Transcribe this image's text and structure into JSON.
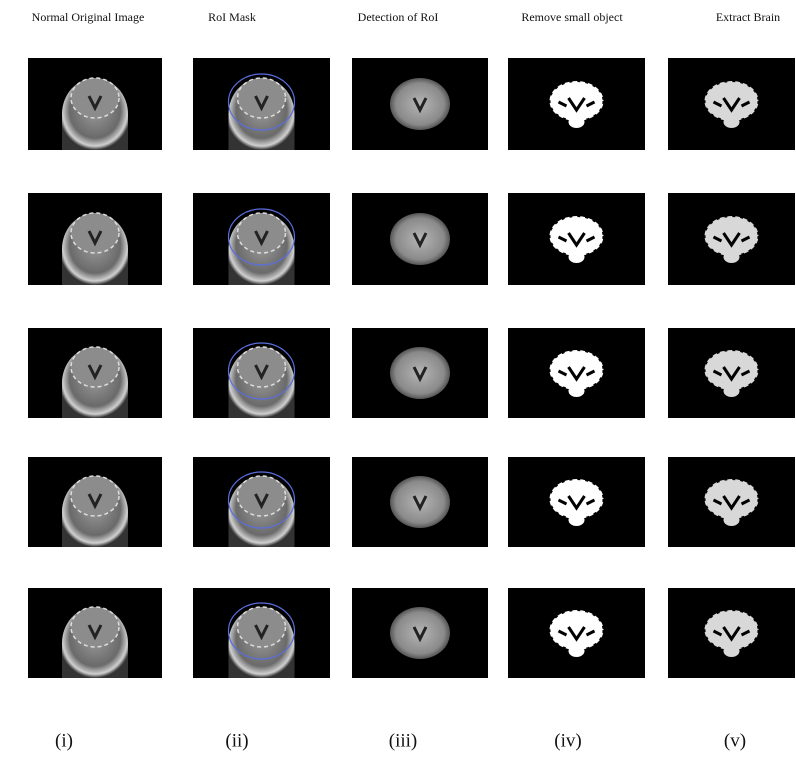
{
  "columns": [
    {
      "title": "Normal Original Image",
      "label": "(i)"
    },
    {
      "title": "RoI Mask",
      "label": "(ii)"
    },
    {
      "title": "Detection of RoI",
      "label": "(iii)"
    },
    {
      "title": "Remove small object",
      "label": "(iv)"
    },
    {
      "title": "Extract Brain",
      "label": "(v)"
    }
  ]
}
